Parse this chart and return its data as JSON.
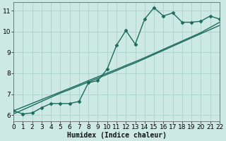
{
  "xlabel": "Humidex (Indice chaleur)",
  "bg_color": "#cce9e4",
  "grid_color": "#b0d5ce",
  "line_color": "#1e6b5e",
  "x_data": [
    0,
    1,
    2,
    3,
    4,
    5,
    6,
    7,
    8,
    9,
    10,
    11,
    12,
    13,
    14,
    15,
    16,
    17,
    18,
    19,
    20,
    21,
    22
  ],
  "y_main": [
    6.2,
    6.05,
    6.1,
    6.35,
    6.55,
    6.55,
    6.55,
    6.65,
    7.55,
    7.65,
    8.2,
    9.35,
    10.05,
    9.4,
    10.6,
    11.15,
    10.75,
    10.9,
    10.45,
    10.45,
    10.5,
    10.75,
    10.6
  ],
  "y_line1": [
    6.05,
    6.25,
    6.45,
    6.65,
    6.85,
    7.05,
    7.22,
    7.4,
    7.58,
    7.76,
    7.95,
    8.13,
    8.32,
    8.5,
    8.7,
    8.9,
    9.1,
    9.3,
    9.5,
    9.7,
    9.9,
    10.1,
    10.3
  ],
  "y_line2": [
    6.2,
    6.38,
    6.56,
    6.74,
    6.92,
    7.1,
    7.28,
    7.46,
    7.65,
    7.83,
    8.01,
    8.19,
    8.38,
    8.56,
    8.75,
    8.95,
    9.15,
    9.35,
    9.55,
    9.75,
    9.95,
    10.2,
    10.45
  ],
  "xlim": [
    0,
    22
  ],
  "ylim": [
    5.7,
    11.4
  ],
  "yticks": [
    6,
    7,
    8,
    9,
    10,
    11
  ],
  "xticks": [
    0,
    1,
    2,
    3,
    4,
    5,
    6,
    7,
    8,
    9,
    10,
    11,
    12,
    13,
    14,
    15,
    16,
    17,
    18,
    19,
    20,
    21,
    22
  ],
  "marker": "D",
  "markersize": 2.5,
  "linewidth": 1.0,
  "font_size": 6.5
}
